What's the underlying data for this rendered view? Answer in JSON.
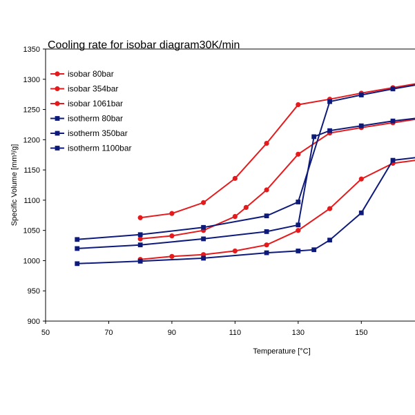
{
  "chart_data": {
    "type": "line",
    "title": "Cooling rate for isobar diagram30K/min",
    "xlabel": "Temperature [°C]",
    "ylabel": "Specific Volume  [mm³/g]",
    "xlim": [
      50,
      167
    ],
    "ylim": [
      900,
      1350
    ],
    "xticks": [
      50,
      70,
      90,
      110,
      130,
      150
    ],
    "yticks": [
      900,
      950,
      1000,
      1050,
      1100,
      1150,
      1200,
      1250,
      1300,
      1350
    ],
    "legend_position": "top-left",
    "colors": {
      "red": "#e41a1c",
      "navy": "#0d1a7a"
    },
    "series": [
      {
        "name": "isobar 80bar",
        "color": "#e41a1c",
        "marker": "circle",
        "x": [
          80,
          90,
          100,
          110,
          120,
          130,
          140,
          150,
          160,
          170
        ],
        "y": [
          1071,
          1078,
          1096,
          1136,
          1194,
          1258,
          1267,
          1277,
          1286,
          1295
        ]
      },
      {
        "name": "isobar 354bar",
        "color": "#e41a1c",
        "marker": "circle",
        "x": [
          80,
          90,
          100,
          110,
          113.5,
          120,
          130,
          140,
          150,
          160,
          170
        ],
        "y": [
          1036,
          1041,
          1050,
          1073,
          1088,
          1117,
          1176,
          1211,
          1220,
          1228,
          1236
        ]
      },
      {
        "name": "isobar 1061bar",
        "color": "#e41a1c",
        "marker": "circle",
        "x": [
          80,
          90,
          100,
          110,
          120,
          130,
          140,
          150,
          160,
          170
        ],
        "y": [
          1002,
          1007,
          1010,
          1016,
          1026,
          1050,
          1086,
          1135,
          1161,
          1168
        ]
      },
      {
        "name": "isotherm 80bar",
        "color": "#0d1a7a",
        "marker": "square",
        "x": [
          60,
          80,
          100,
          120,
          130,
          140,
          150,
          160,
          170
        ],
        "y": [
          1035,
          1043,
          1055,
          1074,
          1097,
          1263,
          1274,
          1284,
          1293
        ]
      },
      {
        "name": "isotherm 350bar",
        "color": "#0d1a7a",
        "marker": "square",
        "x": [
          60,
          80,
          100,
          120,
          130,
          135,
          140,
          150,
          160,
          170
        ],
        "y": [
          1020,
          1026,
          1036,
          1048,
          1059,
          1205,
          1215,
          1223,
          1231,
          1237
        ]
      },
      {
        "name": "isotherm 1100bar",
        "color": "#0d1a7a",
        "marker": "square",
        "x": [
          60,
          80,
          100,
          120,
          130,
          135,
          140,
          150,
          160,
          170
        ],
        "y": [
          995,
          999,
          1004,
          1013,
          1016,
          1018,
          1034,
          1079,
          1166,
          1172
        ]
      }
    ]
  }
}
